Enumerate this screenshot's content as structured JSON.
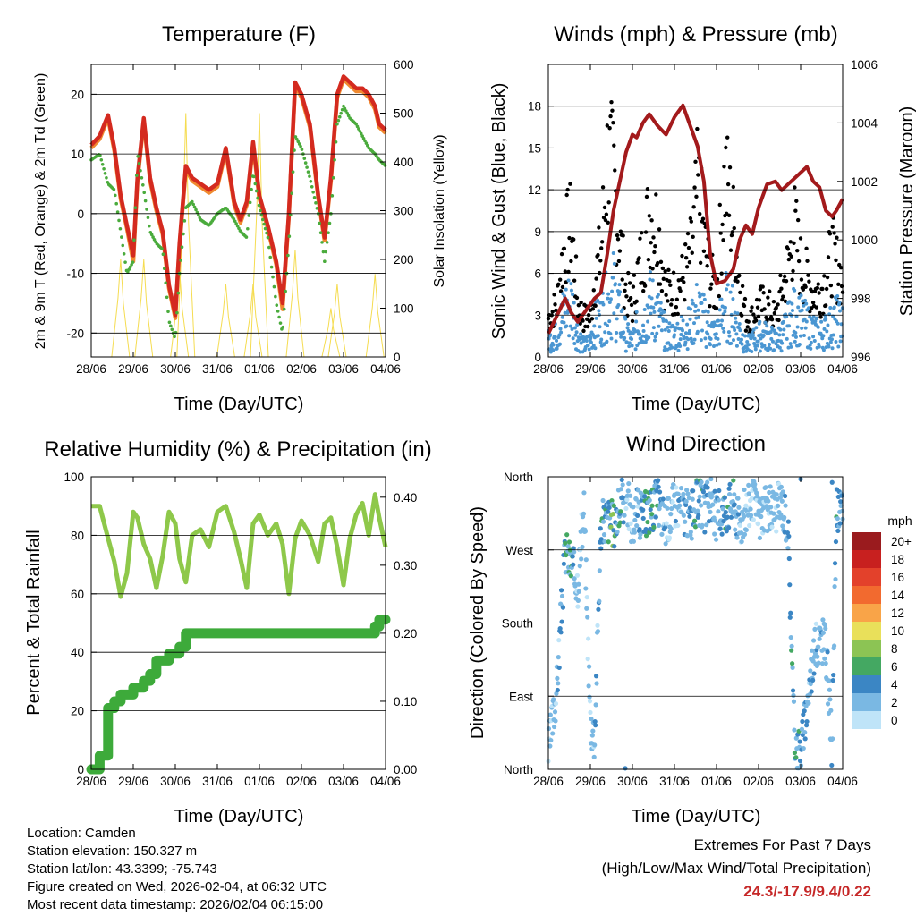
{
  "x_ticks": [
    "28/06",
    "29/06",
    "30/06",
    "31/06",
    "01/06",
    "02/06",
    "03/06",
    "04/06"
  ],
  "colors": {
    "temp_red": "#d42a1f",
    "temp_orange": "#f08a30",
    "dew_green": "#4aab3c",
    "insolation": "#f5dc50",
    "sonic_blue": "#4a96d2",
    "gust_black": "#000000",
    "pressure_maroon": "#a31a1c",
    "rh_lightgreen": "#8ec84a",
    "precip_green": "#3daa3a"
  },
  "info": {
    "location": "Location: Camden",
    "elevation": "Station elevation: 150.327 m",
    "latlon": "Station lat/lon: 43.3399; -75.743",
    "created": "Figure created on Wed, 2026-02-04, at 06:32 UTC",
    "recent": "Most recent data timestamp: 2026/02/04 06:15:00"
  },
  "extremes": {
    "line1": "Extremes For Past 7 Days",
    "line2": "(High/Low/Max Wind/Total Precipitation)",
    "values": "24.3/-17.9/9.4/0.22"
  },
  "chart_data": [
    {
      "id": "temperature",
      "type": "line",
      "title": "Temperature (F)",
      "xlabel": "Time (Day/UTC)",
      "ylabel": "2m & 9m T (Red, Orange) & 2m Td (Green)",
      "y2label": "Solar Insolation (Yellow)",
      "ylim": [
        -24,
        25
      ],
      "y2lim": [
        0,
        600
      ],
      "yticks": [
        -20,
        -10,
        0,
        10,
        20
      ],
      "y2ticks": [
        0,
        100,
        200,
        300,
        400,
        500,
        600
      ],
      "x_days": [
        0,
        0.2,
        0.4,
        0.55,
        0.7,
        0.85,
        1.0,
        1.1,
        1.25,
        1.4,
        1.55,
        1.7,
        1.85,
        2.0,
        2.1,
        2.25,
        2.4,
        2.6,
        2.8,
        3.0,
        3.2,
        3.4,
        3.55,
        3.7,
        3.85,
        4.0,
        4.2,
        4.4,
        4.55,
        4.7,
        4.85,
        5.0,
        5.2,
        5.4,
        5.55,
        5.7,
        5.85,
        6.0,
        6.15,
        6.3,
        6.45,
        6.6,
        6.75,
        6.85,
        7.0
      ],
      "series": [
        {
          "name": "2m T",
          "color": "temp_red",
          "values": [
            11.5,
            13,
            16.5,
            11,
            3,
            -2,
            -7,
            6,
            16,
            6,
            1,
            -3,
            -12,
            -17,
            -5,
            8,
            6,
            5,
            4,
            5,
            11,
            2,
            -1,
            2,
            12,
            3,
            -2,
            -8,
            -15,
            0,
            22,
            20,
            15,
            3,
            -4,
            6,
            20,
            23,
            22,
            21,
            21,
            20,
            18,
            15,
            14
          ]
        },
        {
          "name": "9m T",
          "color": "temp_orange",
          "values": [
            11,
            12.5,
            16,
            10.5,
            2.5,
            -2.5,
            -8,
            5.5,
            15.5,
            5.5,
            0.5,
            -3.5,
            -12.5,
            -17.5,
            -5.5,
            7.5,
            5.5,
            4.5,
            3.5,
            4.5,
            10.5,
            1.5,
            -1.5,
            1.5,
            11.5,
            2.5,
            -2.5,
            -8.5,
            -16,
            -0.5,
            21.5,
            19.5,
            14.5,
            2.5,
            -4.5,
            5.5,
            19.5,
            22.5,
            21.5,
            20.5,
            20.5,
            19.5,
            17.5,
            14.5,
            13.5
          ]
        },
        {
          "name": "2m Td",
          "color": "dew_green",
          "values": [
            9,
            10,
            5,
            4,
            -3,
            -10,
            -8,
            10,
            4,
            -3,
            -5,
            -6,
            -18,
            -21,
            -10,
            1,
            2,
            -1,
            -2,
            0,
            1,
            -1,
            -3,
            -4,
            7,
            1,
            -4,
            -15,
            -20,
            -5,
            13,
            11,
            6,
            0,
            -8,
            0,
            15,
            18,
            16,
            15,
            13,
            11,
            10,
            9,
            8
          ]
        },
        {
          "name": "Solar Insolation",
          "axis": "y2",
          "color": "insolation",
          "values": [
            0,
            0,
            0,
            0,
            200,
            0,
            0,
            0,
            200,
            0,
            0,
            0,
            0,
            0,
            180,
            500,
            0,
            0,
            0,
            0,
            150,
            0,
            0,
            0,
            150,
            500,
            0,
            0,
            0,
            0,
            220,
            0,
            0,
            0,
            0,
            100,
            150,
            0,
            0,
            0,
            0,
            0,
            170,
            0,
            0
          ]
        }
      ]
    },
    {
      "id": "winds",
      "type": "scatter",
      "title": "Winds (mph) & Pressure (mb)",
      "xlabel": "Time (Day/UTC)",
      "ylabel": "Sonic Wind & Gust (Blue, Black)",
      "y2label": "Station Pressure (Maroon)",
      "ylim": [
        0,
        21
      ],
      "y2lim": [
        996,
        1006
      ],
      "yticks": [
        0,
        3,
        6,
        9,
        12,
        15,
        18
      ],
      "y2ticks": [
        996,
        998,
        1000,
        1002,
        1004,
        1006
      ],
      "x_days": [
        0,
        0.2,
        0.4,
        0.55,
        0.7,
        0.85,
        1.0,
        1.1,
        1.25,
        1.4,
        1.55,
        1.7,
        1.85,
        2.0,
        2.1,
        2.25,
        2.4,
        2.6,
        2.8,
        3.0,
        3.2,
        3.4,
        3.55,
        3.7,
        3.85,
        4.0,
        4.2,
        4.4,
        4.55,
        4.7,
        4.85,
        5.0,
        5.2,
        5.4,
        5.55,
        5.7,
        5.85,
        6.0,
        6.15,
        6.3,
        6.45,
        6.6,
        6.75,
        6.85,
        7.0
      ],
      "series": [
        {
          "name": "Sonic Wind",
          "color": "sonic_blue",
          "values": [
            1.5,
            2,
            4.5,
            5,
            2,
            1,
            1.5,
            3,
            3.5,
            5,
            6,
            4,
            2,
            1.5,
            2.5,
            3,
            5,
            4,
            2,
            2,
            2.5,
            3,
            4.5,
            3.5,
            2.5,
            2,
            5,
            4,
            2.5,
            1,
            1.5,
            2,
            2,
            1.5,
            2,
            3,
            4,
            3.5,
            3,
            2.5,
            2,
            2.5,
            3,
            3.5,
            3
          ]
        },
        {
          "name": "Gust",
          "color": "gust_black",
          "values": [
            3,
            4,
            9,
            10,
            4,
            3,
            3,
            6,
            8,
            15,
            14,
            9,
            5,
            4,
            6,
            8,
            11,
            10,
            5,
            5,
            6,
            8,
            13,
            9,
            6,
            5,
            14,
            10,
            6,
            3,
            3,
            4,
            4,
            3,
            5,
            7,
            10,
            7,
            6,
            5,
            5,
            6,
            8,
            7,
            6
          ]
        },
        {
          "name": "Pressure",
          "axis": "y2",
          "color": "pressure_maroon",
          "values": [
            996.8,
            997.4,
            998,
            997.5,
            997.2,
            997.5,
            997.8,
            998,
            998.2,
            999.5,
            1001,
            1002,
            1003,
            1003.6,
            1003.5,
            1004,
            1004.3,
            1003.9,
            1003.6,
            1004.2,
            1004.6,
            1003.8,
            1003.2,
            1002,
            999.5,
            998.5,
            998.6,
            999,
            1000,
            1000.5,
            1000.2,
            1001.1,
            1001.9,
            1002,
            1001.7,
            1001.9,
            1002.1,
            1002.3,
            1002.5,
            1002,
            1001.8,
            1001,
            1000.8,
            1001,
            1001.4
          ]
        }
      ]
    },
    {
      "id": "humidity",
      "type": "line",
      "title": "Relative Humidity (%) & Precipitation (in)",
      "xlabel": "Time (Day/UTC)",
      "ylabel": "Percent & Total Rainfall",
      "ylim": [
        0,
        100
      ],
      "y2lim": [
        0,
        0.43
      ],
      "yticks": [
        0,
        20,
        40,
        60,
        80,
        100
      ],
      "y2ticks": [
        "0.00",
        "0.10",
        "0.20",
        "0.30",
        "0.40"
      ],
      "x_days": [
        0,
        0.2,
        0.4,
        0.55,
        0.7,
        0.85,
        1.0,
        1.1,
        1.25,
        1.4,
        1.55,
        1.7,
        1.85,
        2.0,
        2.1,
        2.25,
        2.4,
        2.6,
        2.8,
        3.0,
        3.2,
        3.4,
        3.55,
        3.7,
        3.85,
        4.0,
        4.2,
        4.4,
        4.55,
        4.7,
        4.85,
        5.0,
        5.2,
        5.4,
        5.55,
        5.7,
        5.85,
        6.0,
        6.15,
        6.3,
        6.45,
        6.6,
        6.75,
        6.85,
        7.0
      ],
      "series": [
        {
          "name": "RH",
          "color": "rh_lightgreen",
          "values": [
            90,
            90,
            79,
            71,
            59,
            67,
            88,
            86,
            77,
            72,
            62,
            73,
            88,
            84,
            72,
            64,
            80,
            82,
            76,
            88,
            90,
            81,
            72,
            62,
            84,
            87,
            80,
            84,
            77,
            60,
            79,
            85,
            80,
            71,
            84,
            86,
            76,
            63,
            79,
            87,
            91,
            80,
            94,
            86,
            76
          ]
        },
        {
          "name": "Total Precipitation",
          "axis": "y2",
          "color": "precip_green",
          "values": [
            0,
            0.02,
            0.09,
            0.1,
            0.11,
            0.11,
            0.12,
            0.12,
            0.13,
            0.14,
            0.16,
            0.16,
            0.17,
            0.17,
            0.18,
            0.2,
            0.2,
            0.2,
            0.2,
            0.2,
            0.2,
            0.2,
            0.2,
            0.2,
            0.2,
            0.2,
            0.2,
            0.2,
            0.2,
            0.2,
            0.2,
            0.2,
            0.2,
            0.2,
            0.2,
            0.2,
            0.2,
            0.2,
            0.2,
            0.2,
            0.2,
            0.2,
            0.21,
            0.22,
            0.22
          ]
        }
      ]
    },
    {
      "id": "direction",
      "type": "scatter",
      "title": "Wind Direction",
      "xlabel": "Time (Day/UTC)",
      "ylabel": "Direction (Colored By Speed)",
      "yticks": [
        "North",
        "East",
        "South",
        "West",
        "North"
      ],
      "legend_title": "mph",
      "legend_labels": [
        "20+",
        "18",
        "16",
        "14",
        "12",
        "10",
        "8",
        "6",
        "4",
        "2",
        "0"
      ],
      "legend_colors": [
        "#9a1b1e",
        "#c8201f",
        "#e3412b",
        "#f26a2f",
        "#f9a448",
        "#e9e05a",
        "#8cc454",
        "#44a862",
        "#3b86c4",
        "#7ab8e3",
        "#bfe4f8"
      ],
      "x_days": [
        0,
        0.2,
        0.4,
        0.55,
        0.7,
        0.85,
        1.0,
        1.1,
        1.25,
        1.4,
        1.55,
        1.7,
        1.85,
        2.0,
        2.1,
        2.25,
        2.4,
        2.6,
        2.8,
        3.0,
        3.2,
        3.4,
        3.55,
        3.7,
        3.85,
        4.0,
        4.2,
        4.4,
        4.55,
        4.7,
        4.85,
        5.0,
        5.2,
        5.4,
        5.55,
        5.7,
        5.85,
        6.0,
        6.15,
        6.3,
        6.45,
        6.6,
        6.75,
        6.85,
        7.0
      ],
      "series": [
        {
          "name": "Direction (deg)",
          "values": [
            20,
            100,
            270,
            250,
            230,
            320,
            60,
            40,
            300,
            310,
            300,
            320,
            340,
            300,
            320,
            310,
            320,
            330,
            300,
            330,
            320,
            310,
            330,
            320,
            330,
            310,
            320,
            330,
            300,
            320,
            330,
            310,
            320,
            320,
            330,
            300,
            40,
            20,
            80,
            140,
            160,
            150,
            20,
            320,
            310
          ]
        },
        {
          "name": "Speed (mph)",
          "values": [
            1.5,
            2,
            4.5,
            5,
            2,
            1,
            1.5,
            3,
            3.5,
            5,
            6,
            4,
            2,
            1.5,
            2.5,
            3,
            5,
            4,
            2,
            2,
            2.5,
            3,
            4.5,
            3.5,
            2.5,
            2,
            5,
            4,
            2.5,
            1,
            1.5,
            2,
            2,
            1.5,
            2,
            3,
            4,
            3.5,
            3,
            2.5,
            2,
            2.5,
            3,
            3.5,
            3
          ]
        }
      ]
    }
  ]
}
